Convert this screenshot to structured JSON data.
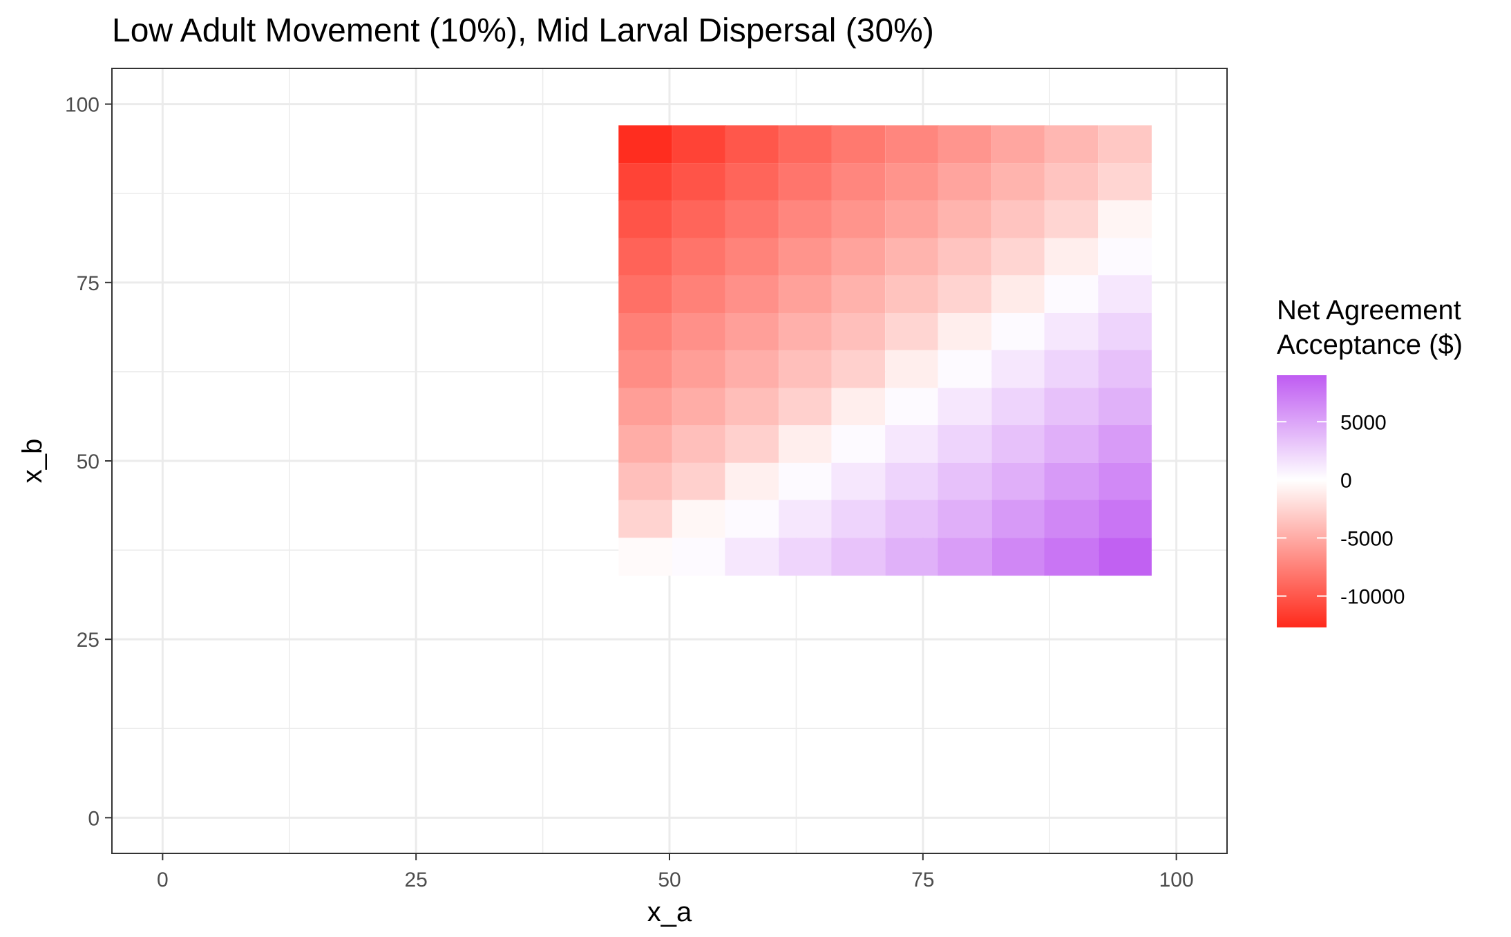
{
  "chart_data": {
    "type": "heatmap",
    "title": "Low Adult Movement (10%), Mid Larval Dispersal (30%)",
    "xlabel": "x_a",
    "ylabel": "x_b",
    "xlim": [
      -5,
      105
    ],
    "ylim": [
      -5,
      105
    ],
    "x_ticks": [
      0,
      25,
      50,
      75,
      100
    ],
    "y_ticks": [
      0,
      25,
      50,
      75,
      100
    ],
    "x_tick_labels": [
      "0",
      "25",
      "50",
      "75",
      "100"
    ],
    "y_tick_labels": [
      "0",
      "25",
      "50",
      "75",
      "100"
    ],
    "grid": true,
    "tile_width": 5.25,
    "tile_height": 5.25,
    "x": [
      47.6,
      52.9,
      58.1,
      63.4,
      68.6,
      73.9,
      79.1,
      84.4,
      89.6,
      94.9
    ],
    "y": [
      94.4,
      89.1,
      83.9,
      78.6,
      73.4,
      68.1,
      62.9,
      57.6,
      52.4,
      47.1,
      41.9,
      36.6
    ],
    "values": [
      [
        -12500,
        -11200,
        -10000,
        -9000,
        -8000,
        -7200,
        -6300,
        -5300,
        -4300,
        -3300
      ],
      [
        -11200,
        -10200,
        -9200,
        -8200,
        -7200,
        -6400,
        -5400,
        -4500,
        -3500,
        -2500
      ],
      [
        -10200,
        -9200,
        -8200,
        -7200,
        -6400,
        -5500,
        -4500,
        -3500,
        -2500,
        -600
      ],
      [
        -9300,
        -8300,
        -7400,
        -6400,
        -5500,
        -4500,
        -3500,
        -2500,
        -1000,
        250
      ],
      [
        -8500,
        -7500,
        -6600,
        -5600,
        -4600,
        -3600,
        -2600,
        -1200,
        300,
        1300
      ],
      [
        -7600,
        -6600,
        -5700,
        -4700,
        -3800,
        -2500,
        -1000,
        300,
        1300,
        2400
      ],
      [
        -6800,
        -5800,
        -4800,
        -3800,
        -2800,
        -1000,
        300,
        1300,
        2400,
        3400
      ],
      [
        -5800,
        -4900,
        -3900,
        -2800,
        -1000,
        300,
        1300,
        2400,
        3400,
        4300
      ],
      [
        -4900,
        -3800,
        -2800,
        -1000,
        300,
        1300,
        2400,
        3400,
        4400,
        5500
      ],
      [
        -3800,
        -2800,
        -900,
        300,
        1300,
        2400,
        3400,
        4400,
        5600,
        6500
      ],
      [
        -2600,
        -500,
        300,
        1300,
        2400,
        3400,
        4400,
        5600,
        6600,
        7600
      ],
      [
        -300,
        300,
        1300,
        2300,
        3300,
        4300,
        5400,
        6600,
        7600,
        8700
      ]
    ],
    "color_scale": {
      "low": "#ff2a1b",
      "mid": "#ffffff",
      "high": "#bf5cf2",
      "midpoint": 0,
      "limits": [
        -12700,
        9000
      ]
    },
    "legend": {
      "title_line1": "Net Agreement",
      "title_line2": "Acceptance ($)",
      "placement": "right",
      "breaks": [
        5000,
        0,
        -5000,
        -10000
      ],
      "labels": [
        "5000",
        "0",
        "-5000",
        "-10000"
      ]
    }
  }
}
